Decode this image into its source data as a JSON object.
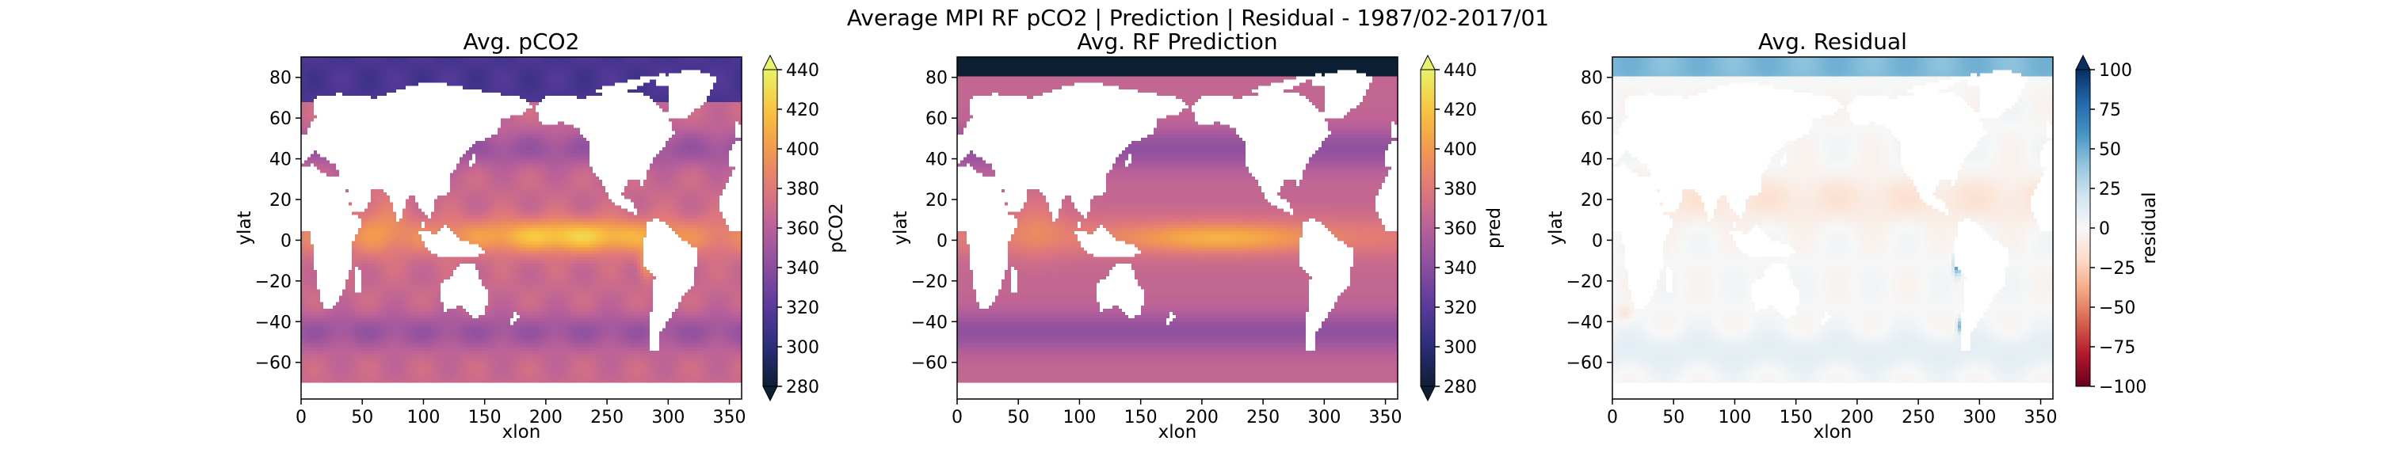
{
  "figure": {
    "suptitle": "Average MPI RF pCO2 | Prediction | Residual - 1987/02-2017/01"
  },
  "colors": {
    "land": "#ffffff",
    "thermal_map": [
      "#0d1f33",
      "#2b2d7a",
      "#5a3a9c",
      "#8a4ea0",
      "#b8609a",
      "#e0787a",
      "#f29a4e",
      "#f8c53e",
      "#e8f26a"
    ],
    "residual_map": [
      "#67001f",
      "#b2182b",
      "#d6604d",
      "#f4a582",
      "#fddbc7",
      "#f7f7f7",
      "#d1e5f0",
      "#92c5de",
      "#4393c3",
      "#2166ac",
      "#053061"
    ]
  },
  "chart_data": [
    {
      "type": "heatmap",
      "title": "Avg. pCO2",
      "xlabel": "xlon",
      "ylabel": "ylat",
      "xlim": [
        0,
        360
      ],
      "ylim": [
        -78,
        90
      ],
      "xticks": [
        "0",
        "50",
        "100",
        "150",
        "200",
        "250",
        "300",
        "350"
      ],
      "yticks": [
        "80",
        "60",
        "40",
        "20",
        "0",
        "−20",
        "−40",
        "−60"
      ],
      "colorbar": {
        "label": "pCO2",
        "range": [
          280,
          440
        ],
        "ticks": [
          "440",
          "420",
          "400",
          "380",
          "360",
          "340",
          "320",
          "300",
          "280"
        ],
        "extend": "both",
        "colormap": "thermal"
      },
      "field": "pco2"
    },
    {
      "type": "heatmap",
      "title": "Avg. RF Prediction",
      "xlabel": "xlon",
      "ylabel": "ylat",
      "xlim": [
        0,
        360
      ],
      "ylim": [
        -78,
        90
      ],
      "xticks": [
        "0",
        "50",
        "100",
        "150",
        "200",
        "250",
        "300",
        "350"
      ],
      "yticks": [
        "80",
        "60",
        "40",
        "20",
        "0",
        "−20",
        "−40",
        "−60"
      ],
      "colorbar": {
        "label": "pred",
        "range": [
          280,
          440
        ],
        "ticks": [
          "440",
          "420",
          "400",
          "380",
          "360",
          "340",
          "320",
          "300",
          "280"
        ],
        "extend": "both",
        "colormap": "thermal"
      },
      "field": "pred"
    },
    {
      "type": "heatmap",
      "title": "Avg. Residual",
      "xlabel": "xlon",
      "ylabel": "ylat",
      "xlim": [
        0,
        360
      ],
      "ylim": [
        -78,
        90
      ],
      "xticks": [
        "0",
        "50",
        "100",
        "150",
        "200",
        "250",
        "300",
        "350"
      ],
      "yticks": [
        "80",
        "60",
        "40",
        "20",
        "0",
        "−20",
        "−40",
        "−60"
      ],
      "colorbar": {
        "label": "residual",
        "range": [
          -100,
          100
        ],
        "ticks": [
          "100",
          "75",
          "50",
          "25",
          "0",
          "−25",
          "−50",
          "−75",
          "−100"
        ],
        "extend": "max",
        "colormap": "residual"
      },
      "field": "residual"
    }
  ]
}
